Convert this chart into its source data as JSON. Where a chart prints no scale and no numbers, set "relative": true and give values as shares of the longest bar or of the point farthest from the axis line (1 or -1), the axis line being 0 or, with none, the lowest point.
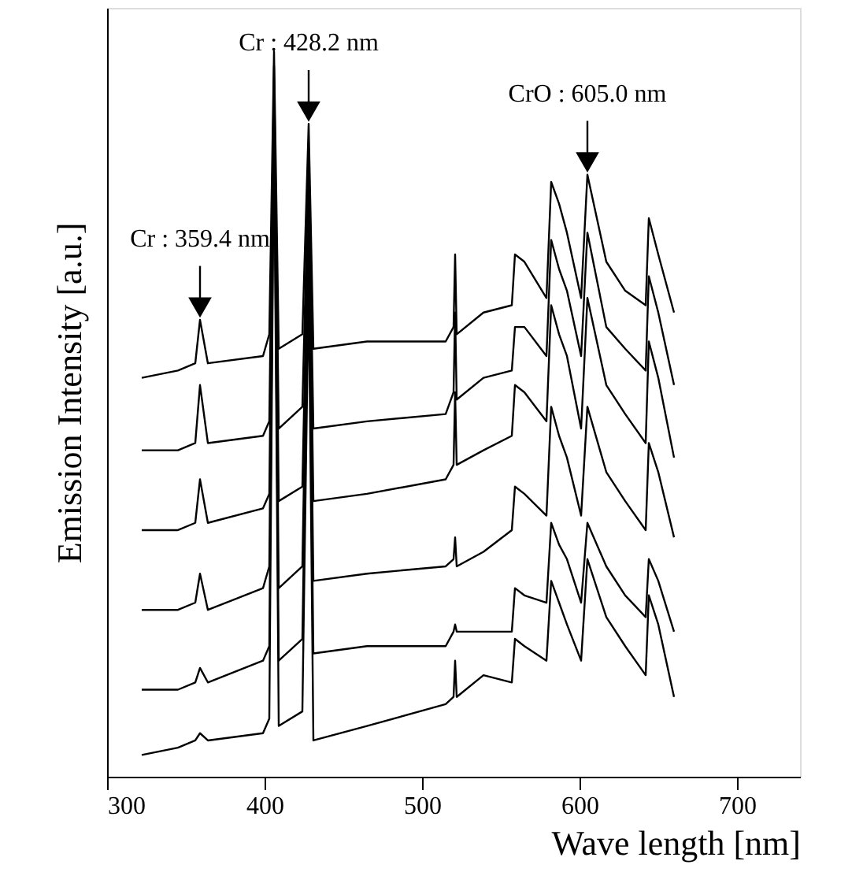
{
  "chart_data": {
    "type": "line",
    "relative": true,
    "xlabel": "Wave length [nm]",
    "ylabel": "Emission Intensity [a.u.]",
    "xlim": [
      300,
      740
    ],
    "xticks": [
      300,
      400,
      500,
      600,
      700
    ],
    "grid": false,
    "marker": "none",
    "line_style": "solid",
    "x": [
      322,
      345,
      356,
      359,
      364,
      399,
      403,
      406,
      409,
      424,
      428,
      431,
      465,
      515,
      520,
      521,
      522,
      539,
      557,
      559,
      565,
      579,
      582,
      587,
      592,
      601,
      605,
      617,
      629,
      642,
      644,
      650,
      660
    ],
    "series": [
      {
        "color": "#000000",
        "values": [
          0.55,
          0.56,
          0.57,
          0.63,
          0.57,
          0.58,
          0.61,
          1.0,
          0.59,
          0.61,
          0.9,
          0.59,
          0.6,
          0.6,
          0.62,
          0.72,
          0.61,
          0.64,
          0.65,
          0.72,
          0.71,
          0.66,
          0.82,
          0.79,
          0.75,
          0.66,
          0.83,
          0.71,
          0.67,
          0.65,
          0.77,
          0.72,
          0.64
        ]
      },
      {
        "color": "#000000",
        "values": [
          0.45,
          0.45,
          0.46,
          0.54,
          0.46,
          0.47,
          0.49,
          0.98,
          0.48,
          0.51,
          0.85,
          0.48,
          0.49,
          0.5,
          0.53,
          0.64,
          0.52,
          0.55,
          0.56,
          0.62,
          0.62,
          0.58,
          0.74,
          0.7,
          0.67,
          0.58,
          0.75,
          0.62,
          0.59,
          0.56,
          0.69,
          0.64,
          0.54
        ]
      },
      {
        "color": "#000000",
        "values": [
          0.34,
          0.34,
          0.35,
          0.41,
          0.35,
          0.37,
          0.39,
          0.96,
          0.38,
          0.4,
          0.81,
          0.38,
          0.39,
          0.41,
          0.43,
          0.53,
          0.43,
          0.45,
          0.47,
          0.54,
          0.53,
          0.49,
          0.65,
          0.61,
          0.58,
          0.48,
          0.66,
          0.54,
          0.5,
          0.46,
          0.6,
          0.55,
          0.44
        ]
      },
      {
        "color": "#000000",
        "values": [
          0.23,
          0.23,
          0.24,
          0.28,
          0.23,
          0.26,
          0.29,
          0.94,
          0.26,
          0.29,
          0.77,
          0.27,
          0.28,
          0.29,
          0.3,
          0.33,
          0.29,
          0.31,
          0.34,
          0.4,
          0.39,
          0.36,
          0.51,
          0.47,
          0.44,
          0.36,
          0.51,
          0.42,
          0.38,
          0.34,
          0.46,
          0.42,
          0.33
        ]
      },
      {
        "color": "#000000",
        "values": [
          0.12,
          0.12,
          0.13,
          0.15,
          0.13,
          0.16,
          0.18,
          0.92,
          0.16,
          0.19,
          0.72,
          0.17,
          0.18,
          0.18,
          0.2,
          0.21,
          0.2,
          0.2,
          0.2,
          0.26,
          0.25,
          0.24,
          0.35,
          0.32,
          0.3,
          0.24,
          0.35,
          0.29,
          0.25,
          0.22,
          0.3,
          0.27,
          0.2
        ]
      },
      {
        "color": "#000000",
        "values": [
          0.03,
          0.04,
          0.05,
          0.06,
          0.05,
          0.06,
          0.08,
          0.9,
          0.07,
          0.09,
          0.68,
          0.05,
          0.07,
          0.1,
          0.11,
          0.16,
          0.11,
          0.14,
          0.13,
          0.19,
          0.18,
          0.16,
          0.27,
          0.24,
          0.21,
          0.16,
          0.3,
          0.22,
          0.18,
          0.14,
          0.25,
          0.21,
          0.11
        ]
      }
    ],
    "annotations": [
      {
        "text": "Cr : 359.4 nm",
        "x": 359,
        "y": 0.63
      },
      {
        "text": "Cr : 428.2 nm",
        "x": 428,
        "y": 0.9
      },
      {
        "text": "CrO : 605.0 nm",
        "x": 605,
        "y": 0.83
      }
    ]
  }
}
